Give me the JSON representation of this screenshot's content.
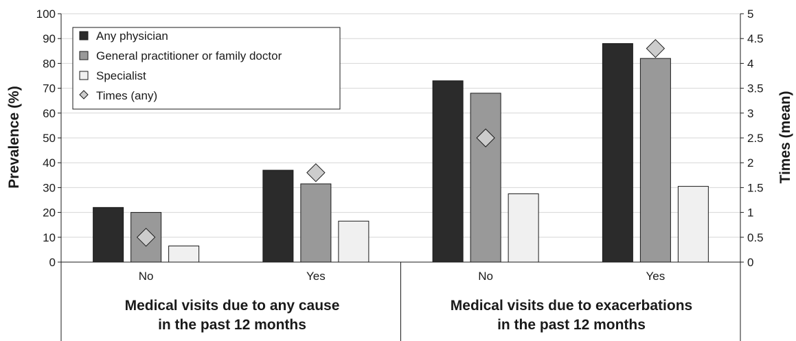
{
  "chart_data": {
    "type": "bar",
    "categories": [
      "No",
      "Yes",
      "No",
      "Yes"
    ],
    "groups": [
      {
        "label_line1": "Medical visits due to any cause",
        "label_line2": "in the past 12 months"
      },
      {
        "label_line1": "Medical visits due to exacerbations",
        "label_line2": "in the past 12 months"
      }
    ],
    "series": [
      {
        "name": "Any physician",
        "values": [
          22,
          37,
          73,
          88
        ],
        "color": "#2b2b2b"
      },
      {
        "name": "General practitioner or family doctor",
        "values": [
          20,
          31.5,
          68,
          82
        ],
        "color": "#999999"
      },
      {
        "name": "Specialist",
        "values": [
          6.5,
          16.5,
          27.5,
          30.5
        ],
        "color": "#f0f0f0"
      }
    ],
    "markers": {
      "name": "Times (any)",
      "values": [
        0.5,
        1.8,
        2.5,
        4.3
      ],
      "color": "#cccccc"
    },
    "ylabel": "Prevalence (%)",
    "ylabel_right": "Times (mean)",
    "ylim": [
      0,
      100
    ],
    "y_ticks": [
      "0",
      "10",
      "20",
      "30",
      "40",
      "50",
      "60",
      "70",
      "80",
      "90",
      "100"
    ],
    "ylim_right": [
      0,
      5
    ],
    "y_ticks_right": [
      "0",
      "0.5",
      "1",
      "1.5",
      "2",
      "2.5",
      "3",
      "3.5",
      "4",
      "4.5",
      "5"
    ],
    "grid": true,
    "legend_position": "top-left"
  }
}
